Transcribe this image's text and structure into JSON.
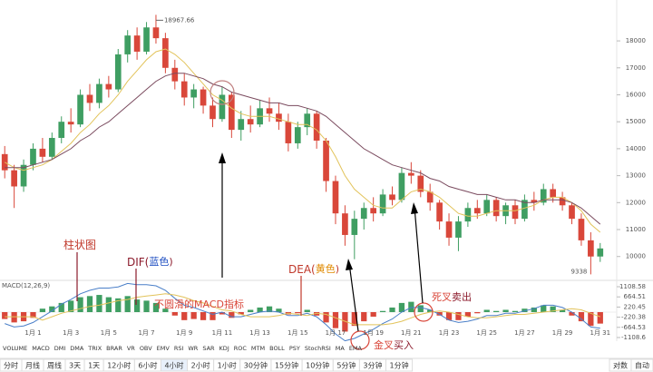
{
  "chart_data": {
    "type": "candlestick",
    "categories": [
      null,
      null,
      null,
      "1月 1",
      null,
      null,
      null,
      "1月 3",
      null,
      null,
      null,
      "1月 5",
      null,
      null,
      null,
      "1月 7",
      null,
      null,
      null,
      "1月 9",
      null,
      null,
      null,
      "1月 11",
      null,
      null,
      null,
      "1月 13",
      null,
      null,
      null,
      "1月 15",
      null,
      null,
      null,
      "1月 17",
      null,
      null,
      null,
      "1月 19",
      null,
      null,
      null,
      "1月 21",
      null,
      null,
      null,
      "1月 23",
      null,
      null,
      null,
      "1月 25",
      null,
      null,
      null,
      "1月 27",
      null,
      null,
      null,
      "1月 29",
      null,
      null,
      null,
      "1月 31"
    ],
    "open": [
      13800,
      13200,
      12600,
      13400,
      14000,
      13700,
      14400,
      15000,
      14900,
      16000,
      15700,
      16400,
      16200,
      17500,
      18200,
      17600,
      18500,
      18100,
      17000,
      16500,
      15900,
      16200,
      15600,
      15100,
      16000,
      14700,
      15100,
      14900,
      15500,
      15300,
      15000,
      14200,
      14800,
      15300,
      14300,
      12800,
      11600,
      10800,
      11400,
      11800,
      11600,
      12300,
      12100,
      13100,
      13000,
      12400,
      12000,
      11300,
      10700,
      11300,
      11800,
      11600,
      12100,
      11500,
      11900,
      11400,
      12100,
      12000,
      12500,
      12200,
      11900,
      11400,
      10600,
      10000
    ],
    "high": [
      14100,
      13400,
      13600,
      14200,
      14400,
      14600,
      15200,
      15500,
      16200,
      16400,
      16600,
      16700,
      17700,
      18400,
      18500,
      18700,
      18967.66,
      18300,
      17300,
      16800,
      16400,
      16300,
      15900,
      16300,
      16100,
      15400,
      15600,
      15800,
      15900,
      15700,
      15300,
      15000,
      15500,
      15400,
      14400,
      13000,
      11900,
      11700,
      12000,
      12200,
      12500,
      12600,
      13300,
      13500,
      13200,
      12700,
      12100,
      11600,
      11500,
      12000,
      12100,
      12300,
      12200,
      12000,
      12100,
      12300,
      12400,
      12700,
      12700,
      12400,
      12000,
      11600,
      10900,
      10500
    ],
    "low": [
      12900,
      11800,
      12400,
      13200,
      13500,
      13600,
      14200,
      14600,
      14800,
      15400,
      15500,
      15900,
      16100,
      17200,
      17300,
      17500,
      17900,
      16800,
      16200,
      15600,
      15500,
      15300,
      14800,
      15000,
      14400,
      14300,
      14600,
      14800,
      15000,
      14700,
      13900,
      14000,
      14500,
      14000,
      12400,
      11200,
      10400,
      9900,
      11000,
      11300,
      11500,
      11900,
      12000,
      12700,
      12200,
      11700,
      11000,
      10400,
      10200,
      11100,
      11400,
      11500,
      11300,
      11200,
      11200,
      11300,
      11700,
      11900,
      12000,
      11700,
      11200,
      10400,
      9338,
      9800
    ],
    "close": [
      13200,
      12600,
      13400,
      14000,
      13700,
      14400,
      15000,
      14900,
      16000,
      15700,
      16400,
      16200,
      17500,
      18200,
      17600,
      18500,
      18100,
      17000,
      16500,
      15900,
      16200,
      15600,
      15100,
      16000,
      14700,
      15100,
      14900,
      15500,
      15300,
      15000,
      14200,
      14800,
      15300,
      14300,
      12800,
      11600,
      10800,
      11400,
      11800,
      11600,
      12300,
      12100,
      13100,
      13000,
      12400,
      12000,
      11300,
      10700,
      11300,
      11800,
      11600,
      12100,
      11500,
      11900,
      11400,
      12100,
      12000,
      12500,
      12200,
      11900,
      11400,
      10600,
      10000,
      10300
    ],
    "up_color": "#3f9e62",
    "down_color": "#d9473a",
    "ylim": [
      9250,
      19450
    ],
    "yticks": [
      10000,
      11000,
      12000,
      13000,
      14000,
      15000,
      16000,
      17000,
      18000
    ],
    "overlays": [
      {
        "color": "#e2c35a",
        "values": [
          13500,
          13300,
          13200,
          13300,
          13400,
          13600,
          13900,
          14200,
          14600,
          14900,
          15300,
          15600,
          16000,
          16500,
          16900,
          17300,
          17600,
          17700,
          17500,
          17200,
          16800,
          16400,
          16000,
          15800,
          15500,
          15300,
          15200,
          15200,
          15200,
          15100,
          15000,
          14900,
          14900,
          14700,
          14300,
          13700,
          13000,
          12500,
          12200,
          11900,
          11800,
          11800,
          12100,
          12400,
          12500,
          12400,
          12200,
          11900,
          11600,
          11500,
          11500,
          11600,
          11700,
          11700,
          11700,
          11800,
          11900,
          12100,
          12200,
          12200,
          12000,
          11700,
          11200,
          10900
        ]
      },
      {
        "color": "#7a4a5e",
        "values": [
          13300,
          13300,
          13300,
          13400,
          13500,
          13600,
          13800,
          14000,
          14300,
          14500,
          14800,
          15000,
          15300,
          15600,
          15900,
          16200,
          16500,
          16700,
          16800,
          16800,
          16700,
          16600,
          16400,
          16300,
          16100,
          16000,
          15900,
          15800,
          15700,
          15700,
          15600,
          15600,
          15500,
          15400,
          15200,
          14900,
          14600,
          14300,
          14000,
          13800,
          13600,
          13400,
          13300,
          13200,
          13100,
          12900,
          12800,
          12600,
          12500,
          12400,
          12300,
          12300,
          12200,
          12100,
          12100,
          12000,
          12000,
          12100,
          12100,
          12100,
          12000,
          11800,
          11500,
          11200
        ]
      }
    ],
    "macd": {
      "label": "MACD(12,26,9)",
      "ylim": [
        -1108.6,
        1108.58
      ],
      "yticks": [
        -1108.6,
        -664.53,
        -220.38,
        220.45,
        664.51,
        1108.58
      ],
      "hist": [
        -300,
        -450,
        -400,
        -250,
        150,
        250,
        400,
        500,
        650,
        700,
        750,
        650,
        600,
        700,
        550,
        500,
        400,
        150,
        -150,
        -350,
        -300,
        -350,
        -350,
        -100,
        -250,
        -100,
        100,
        200,
        250,
        150,
        -100,
        -50,
        100,
        -150,
        -450,
        -700,
        -850,
        -600,
        -400,
        -200,
        50,
        200,
        400,
        450,
        300,
        100,
        -150,
        -350,
        -350,
        -200,
        -50,
        100,
        50,
        100,
        50,
        150,
        200,
        300,
        250,
        100,
        -150,
        -400,
        -600,
        -500
      ],
      "dif": {
        "color": "#4a7fc8",
        "values": [
          -500,
          -650,
          -600,
          -450,
          -200,
          50,
          350,
          550,
          800,
          950,
          1050,
          1050,
          1100,
          1250,
          1200,
          1200,
          1150,
          950,
          600,
          300,
          200,
          50,
          -100,
          0,
          -200,
          -200,
          -100,
          0,
          50,
          0,
          -150,
          -150,
          -50,
          -200,
          -550,
          -950,
          -1250,
          -1150,
          -950,
          -750,
          -500,
          -300,
          0,
          200,
          200,
          100,
          -100,
          -350,
          -450,
          -400,
          -300,
          -150,
          -150,
          -50,
          -50,
          50,
          150,
          300,
          300,
          200,
          0,
          -300,
          -650,
          -700
        ]
      },
      "dea": {
        "color": "#e2c35a",
        "values": [
          -200,
          -200,
          -200,
          -200,
          -350,
          -200,
          -50,
          50,
          150,
          250,
          300,
          400,
          500,
          550,
          650,
          700,
          750,
          800,
          750,
          650,
          500,
          400,
          250,
          100,
          50,
          -100,
          -200,
          -200,
          -200,
          -150,
          -50,
          -100,
          -150,
          -50,
          -100,
          -250,
          -400,
          -550,
          -550,
          -550,
          -550,
          -500,
          -400,
          -250,
          -100,
          0,
          50,
          0,
          -100,
          -200,
          -250,
          -250,
          -200,
          -150,
          -100,
          -100,
          -50,
          0,
          50,
          100,
          150,
          100,
          -50,
          -200
        ]
      }
    },
    "annotations": [
      {
        "parts": [
          {
            "text": "柱状图",
            "color": "#c0392b"
          }
        ]
      },
      {
        "parts": [
          {
            "text": "DIF(",
            "color": "#8b1a2b"
          },
          {
            "text": "蓝色",
            "color": "#1f4fc2"
          },
          {
            "text": ")",
            "color": "#8b1a2b"
          }
        ]
      },
      {
        "parts": [
          {
            "text": "DEA(",
            "color": "#c0392b"
          },
          {
            "text": "黄色",
            "color": "#e08a00"
          },
          {
            "text": ")",
            "color": "#c0392b"
          }
        ]
      },
      {
        "parts": [
          {
            "text": "不圆滑的MACD指标",
            "color": "#d9473a"
          }
        ]
      },
      {
        "parts": [
          {
            "text": "金叉",
            "color": "#d9473a"
          },
          {
            "text": "买入",
            "color": "#8b1a2b"
          }
        ]
      },
      {
        "parts": [
          {
            "text": "死叉",
            "color": "#d9473a"
          },
          {
            "text": "卖出",
            "color": "#8b1a2b"
          }
        ]
      }
    ],
    "indicator_tabs": [
      "VOLUME",
      "MACD",
      "DMI",
      "DMA",
      "TRIX",
      "BRAR",
      "VR",
      "OBV",
      "EMV",
      "RSI",
      "WR",
      "SAR",
      "KDJ",
      "ROC",
      "MTM",
      "BOLL",
      "PSY",
      "StochRSI",
      "MA",
      "EMA"
    ],
    "active_indicator": 1,
    "periods": [
      "分时",
      "月线",
      "周线",
      "3天",
      "1天",
      "12小时",
      "6小时",
      "4小时",
      "2小时",
      "1小时",
      "30分钟",
      "15分钟",
      "10分钟",
      "5分钟",
      "3分钟",
      "1分钟"
    ],
    "active_period": 7,
    "right_buttons": [
      "对数",
      "自动"
    ]
  }
}
